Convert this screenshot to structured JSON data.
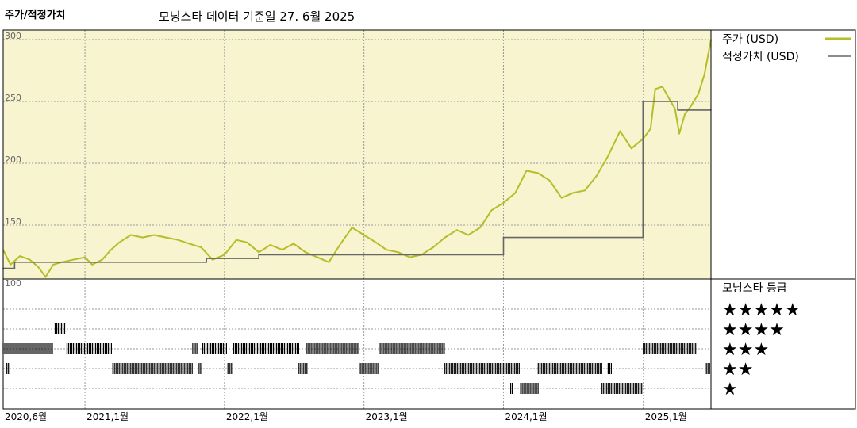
{
  "header": {
    "title": "주가/적정가치",
    "subtitle": "모닝스타 데이터 기준일 27. 6월 2025"
  },
  "colors": {
    "price": "#b5bd28",
    "fair_value": "#666666",
    "upper_bg": "#f7f4cf",
    "rating_bar": "#000000"
  },
  "chart_data": [
    {
      "type": "line",
      "title": "",
      "x_axis": {
        "type": "date",
        "range": [
          "2020-06-01",
          "2025-06-27"
        ],
        "tick_labels": [
          {
            "date": "2020-06-01",
            "label": "2020,6월"
          },
          {
            "date": "2021-01-01",
            "label": "2021,1월"
          },
          {
            "date": "2022-01-01",
            "label": "2022,1월"
          },
          {
            "date": "2023-01-01",
            "label": "2023,1월"
          },
          {
            "date": "2024-01-01",
            "label": "2024,1월"
          },
          {
            "date": "2025-01-01",
            "label": "2025,1월"
          }
        ]
      },
      "y_axis": {
        "range": [
          100,
          300
        ],
        "ticks": [
          100,
          150,
          200,
          250,
          300
        ]
      },
      "grid": true,
      "legend": "right",
      "series": [
        {
          "name": "주가 (USD)",
          "color": "#b5bd28",
          "points": [
            [
              "2020-06-01",
              130
            ],
            [
              "2020-06-20",
              118
            ],
            [
              "2020-07-15",
              125
            ],
            [
              "2020-08-10",
              122
            ],
            [
              "2020-09-01",
              116
            ],
            [
              "2020-09-20",
              108
            ],
            [
              "2020-10-10",
              118
            ],
            [
              "2020-11-01",
              120
            ],
            [
              "2020-12-01",
              122
            ],
            [
              "2021-01-01",
              124
            ],
            [
              "2021-01-20",
              118
            ],
            [
              "2021-02-15",
              122
            ],
            [
              "2021-03-10",
              130
            ],
            [
              "2021-04-01",
              136
            ],
            [
              "2021-05-01",
              142
            ],
            [
              "2021-06-01",
              140
            ],
            [
              "2021-07-01",
              142
            ],
            [
              "2021-08-01",
              140
            ],
            [
              "2021-09-01",
              138
            ],
            [
              "2021-10-01",
              135
            ],
            [
              "2021-11-01",
              132
            ],
            [
              "2021-12-01",
              122
            ],
            [
              "2022-01-01",
              126
            ],
            [
              "2022-02-01",
              138
            ],
            [
              "2022-03-01",
              136
            ],
            [
              "2022-04-01",
              128
            ],
            [
              "2022-05-01",
              134
            ],
            [
              "2022-06-01",
              130
            ],
            [
              "2022-07-01",
              135
            ],
            [
              "2022-08-01",
              128
            ],
            [
              "2022-09-01",
              124
            ],
            [
              "2022-10-01",
              120
            ],
            [
              "2022-11-01",
              135
            ],
            [
              "2022-12-01",
              148
            ],
            [
              "2023-01-01",
              142
            ],
            [
              "2023-02-01",
              136
            ],
            [
              "2023-03-01",
              130
            ],
            [
              "2023-04-01",
              128
            ],
            [
              "2023-05-01",
              124
            ],
            [
              "2023-06-01",
              126
            ],
            [
              "2023-07-01",
              132
            ],
            [
              "2023-08-01",
              140
            ],
            [
              "2023-09-01",
              146
            ],
            [
              "2023-10-01",
              142
            ],
            [
              "2023-11-01",
              148
            ],
            [
              "2023-12-01",
              162
            ],
            [
              "2024-01-01",
              168
            ],
            [
              "2024-02-01",
              176
            ],
            [
              "2024-03-01",
              194
            ],
            [
              "2024-04-01",
              192
            ],
            [
              "2024-05-01",
              186
            ],
            [
              "2024-06-01",
              172
            ],
            [
              "2024-07-01",
              176
            ],
            [
              "2024-08-01",
              178
            ],
            [
              "2024-09-01",
              190
            ],
            [
              "2024-10-01",
              206
            ],
            [
              "2024-11-01",
              226
            ],
            [
              "2024-12-01",
              212
            ],
            [
              "2025-01-01",
              220
            ],
            [
              "2025-01-20",
              228
            ],
            [
              "2025-02-01",
              260
            ],
            [
              "2025-02-20",
              262
            ],
            [
              "2025-03-10",
              252
            ],
            [
              "2025-03-25",
              244
            ],
            [
              "2025-04-05",
              224
            ],
            [
              "2025-04-20",
              240
            ],
            [
              "2025-05-05",
              246
            ],
            [
              "2025-05-25",
              256
            ],
            [
              "2025-06-10",
              272
            ],
            [
              "2025-06-27",
              300
            ]
          ]
        },
        {
          "name": "적정가치 (USD)",
          "color": "#666666",
          "points": [
            [
              "2020-06-01",
              115
            ],
            [
              "2020-07-01",
              115
            ],
            [
              "2020-07-01",
              120
            ],
            [
              "2021-11-15",
              120
            ],
            [
              "2021-11-15",
              123
            ],
            [
              "2022-04-01",
              123
            ],
            [
              "2022-04-01",
              126
            ],
            [
              "2024-01-01",
              126
            ],
            [
              "2024-01-01",
              140
            ],
            [
              "2024-12-31",
              140
            ],
            [
              "2024-12-31",
              250
            ],
            [
              "2025-04-01",
              250
            ],
            [
              "2025-04-01",
              243
            ],
            [
              "2025-06-27",
              243
            ]
          ]
        }
      ]
    },
    {
      "type": "rating-timeline",
      "title": "모닝스타 등급",
      "y_axis": {
        "ticks": [
          100
        ]
      },
      "levels": [
        {
          "stars": 5,
          "label": "★★★★★",
          "periods": []
        },
        {
          "stars": 4,
          "label": "★★★★",
          "periods": [
            [
              "2020-10-15",
              "2020-11-10"
            ]
          ]
        },
        {
          "stars": 3,
          "label": "★★★",
          "periods": [
            [
              "2020-06-01",
              "2020-10-10"
            ],
            [
              "2020-11-15",
              "2021-03-15"
            ],
            [
              "2021-10-10",
              "2021-10-25"
            ],
            [
              "2021-11-05",
              "2022-01-10"
            ],
            [
              "2022-01-25",
              "2022-07-15"
            ],
            [
              "2022-08-05",
              "2022-12-20"
            ],
            [
              "2023-02-10",
              "2023-07-31"
            ],
            [
              "2025-01-01",
              "2025-05-20"
            ]
          ]
        },
        {
          "stars": 2,
          "label": "★★",
          "periods": [
            [
              "2020-06-10",
              "2020-06-20"
            ],
            [
              "2021-03-15",
              "2021-10-10"
            ],
            [
              "2021-10-25",
              "2021-11-05"
            ],
            [
              "2022-01-10",
              "2022-01-25"
            ],
            [
              "2022-07-15",
              "2022-08-05"
            ],
            [
              "2022-12-20",
              "2023-02-10"
            ],
            [
              "2023-07-31",
              "2024-02-15"
            ],
            [
              "2024-04-01",
              "2024-09-15"
            ],
            [
              "2024-10-01",
              "2024-10-10"
            ],
            [
              "2025-06-15",
              "2025-06-27"
            ]
          ]
        },
        {
          "stars": 1,
          "label": "★",
          "periods": [
            [
              "2024-01-20",
              "2024-01-25"
            ],
            [
              "2024-02-15",
              "2024-04-01"
            ],
            [
              "2024-09-15",
              "2024-12-31"
            ]
          ]
        }
      ]
    }
  ]
}
